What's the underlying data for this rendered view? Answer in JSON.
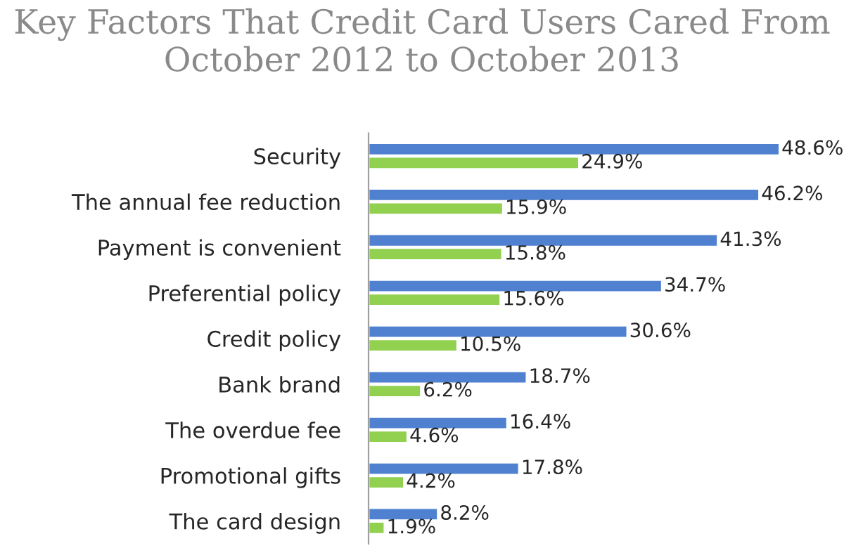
{
  "chart_data": {
    "type": "bar",
    "orientation": "horizontal",
    "title": "Key Factors That Credit Card Users Cared From October 2012 to October 2013",
    "categories": [
      "Security",
      "The annual fee reduction",
      "Payment is convenient",
      "Preferential policy",
      "Credit policy",
      "Bank brand",
      "The overdue fee",
      "Promotional gifts",
      "The card design"
    ],
    "series": [
      {
        "color": "#4f81d0",
        "values": [
          48.6,
          46.2,
          41.3,
          34.7,
          30.6,
          18.7,
          16.4,
          17.8,
          8.2
        ],
        "value_labels": [
          "48.6%",
          "46.2%",
          "41.3%",
          "34.7%",
          "30.6%",
          "18.7%",
          "16.4%",
          "17.8%",
          "8.2%"
        ]
      },
      {
        "color": "#92d050",
        "values": [
          24.9,
          15.9,
          15.8,
          15.6,
          10.5,
          6.2,
          4.6,
          4.2,
          1.9
        ],
        "value_labels": [
          "24.9%",
          "15.9%",
          "15.8%",
          "15.6%",
          "10.5%",
          "6.2%",
          "4.6%",
          "4.2%",
          "1.9%"
        ]
      }
    ],
    "tick_labels": "y",
    "grid": false,
    "legend": false
  }
}
